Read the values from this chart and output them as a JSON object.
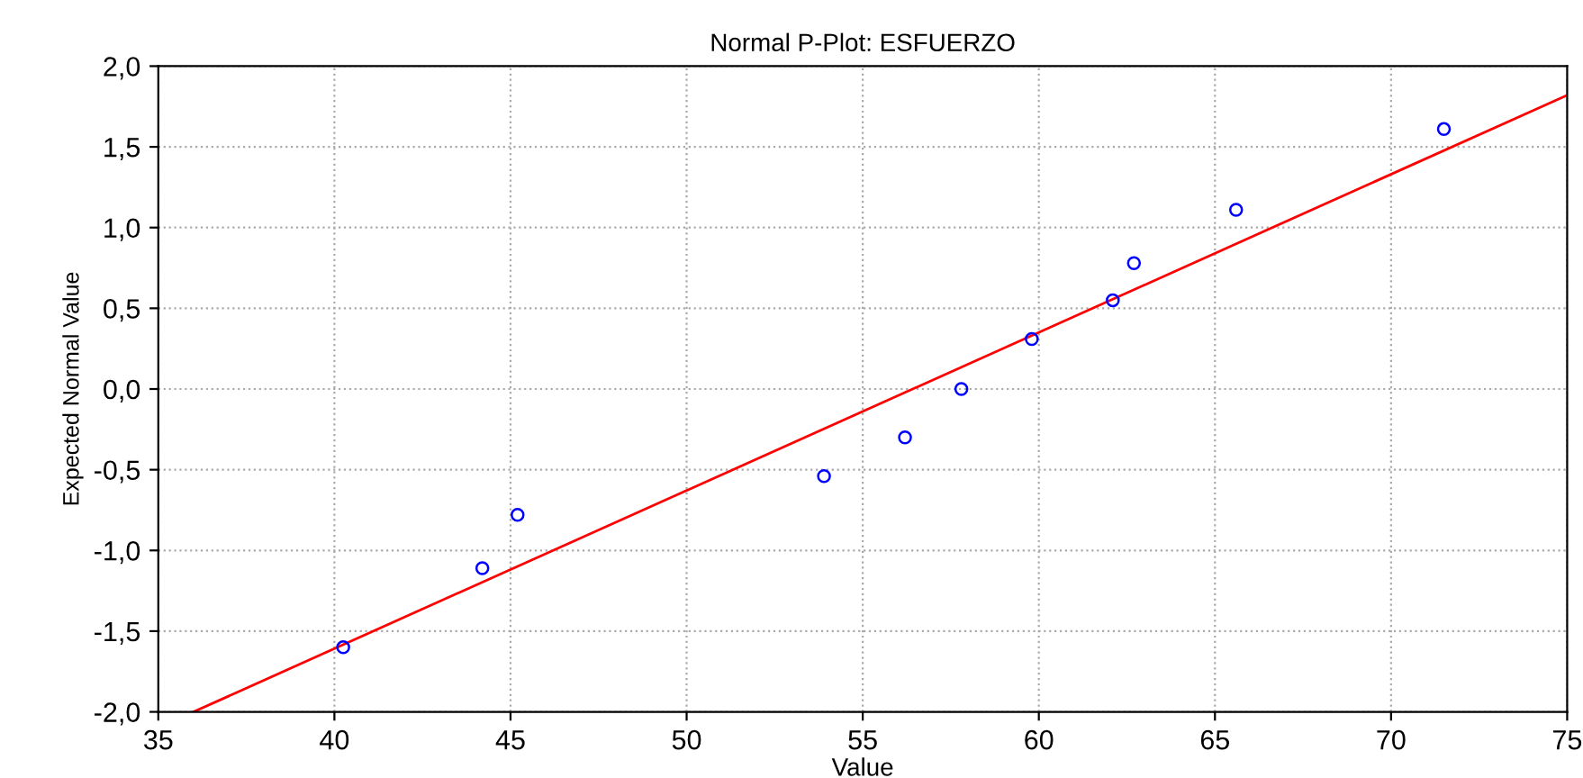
{
  "chart_data": {
    "type": "scatter",
    "title": "Normal P-Plot: ESFUERZO",
    "xlabel": "Value",
    "ylabel": "Expected Normal Value",
    "series": [
      {
        "color": "#0000ff",
        "marker": "circle",
        "x": [
          40.25,
          44.2,
          45.2,
          53.9,
          56.2,
          57.8,
          59.8,
          62.1,
          62.7,
          65.6,
          71.5
        ],
        "values": [
          -1.6,
          -1.11,
          -0.78,
          -0.54,
          -0.3,
          0.0,
          0.31,
          0.55,
          0.78,
          1.11,
          1.61
        ]
      },
      {
        "type": "line",
        "color": "#ff0000",
        "marker": "none",
        "line_style": "solid",
        "x": [
          36,
          75
        ],
        "values": [
          -2.0,
          1.82
        ]
      }
    ],
    "xlim": [
      35,
      75
    ],
    "ylim": [
      -2.0,
      2.0
    ],
    "xticks": [
      35,
      40,
      45,
      50,
      55,
      60,
      65,
      70,
      75
    ],
    "yticks": [
      {
        "value": -2.0,
        "label": "-2,0"
      },
      {
        "value": -1.5,
        "label": "-1,5"
      },
      {
        "value": -1.0,
        "label": "-1,0"
      },
      {
        "value": -0.5,
        "label": "-0,5"
      },
      {
        "value": 0.0,
        "label": "0,0"
      },
      {
        "value": 0.5,
        "label": "0,5"
      },
      {
        "value": 1.0,
        "label": "1,0"
      },
      {
        "value": 1.5,
        "label": "1,5"
      },
      {
        "value": 2.0,
        "label": "2,0"
      }
    ],
    "grid": true
  }
}
